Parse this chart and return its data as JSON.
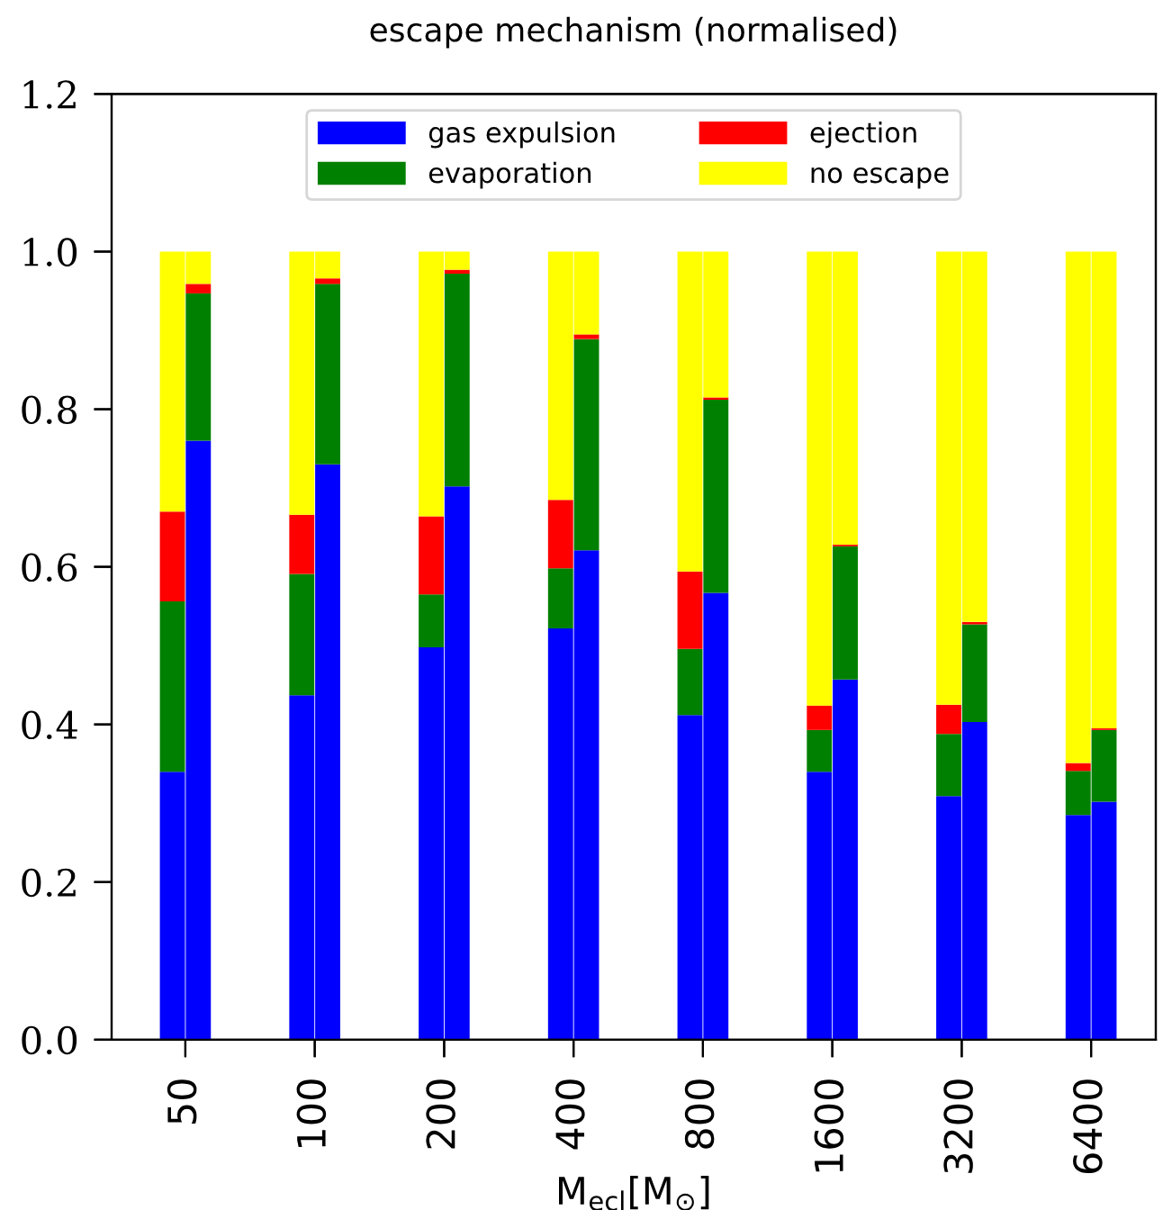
{
  "chart_data": [
    {
      "type": "bar",
      "title": "escape mechanism (normalised)",
      "xlabel": "M$_{ecl}$[M$_{⊙}$]",
      "stacked": true,
      "legend": "top",
      "categories": [
        "50",
        "100",
        "200",
        "400",
        "800",
        "1600",
        "3200",
        "6400"
      ],
      "ylim": [
        0,
        1.2
      ],
      "yticks": [
        {
          "value": 0,
          "label": "0.0"
        },
        0.2,
        0.4,
        0.6,
        0.8,
        {
          "value": 1,
          "label": "1.0"
        },
        1.2
      ],
      "series": [
        {
          "name": "gas expulsion",
          "color": "#0000ff",
          "values": [
            0.34,
            0.437,
            0.498,
            0.522,
            0.412,
            0.34,
            0.309,
            0.285
          ]
        },
        {
          "name": "evaporation",
          "color": "#008000",
          "values": [
            0.216,
            0.154,
            0.067,
            0.076,
            0.084,
            0.053,
            0.079,
            0.056
          ]
        },
        {
          "name": "ejection",
          "color": "#ff0000",
          "values": [
            0.114,
            0.075,
            0.099,
            0.087,
            0.098,
            0.031,
            0.037,
            0.01
          ]
        },
        {
          "name": "no escape",
          "color": "#ffff00",
          "values": [
            0.33,
            0.334,
            0.336,
            0.315,
            0.406,
            0.576,
            0.575,
            0.649
          ]
        }
      ]
    },
    {
      "type": "bar",
      "stacked": true,
      "tick_labels": false,
      "categories": [
        "50",
        "100",
        "200",
        "400",
        "800",
        "1600",
        "3200",
        "6400"
      ],
      "ylim": [
        0,
        1.2
      ],
      "series": [
        {
          "color": "#0000ff",
          "values": [
            0.76,
            0.73,
            0.702,
            0.621,
            0.567,
            0.457,
            0.403,
            0.302
          ]
        },
        {
          "color": "#008000",
          "values": [
            0.187,
            0.229,
            0.27,
            0.268,
            0.245,
            0.169,
            0.124,
            0.091
          ]
        },
        {
          "color": "#ff0000",
          "values": [
            0.012,
            0.007,
            0.005,
            0.006,
            0.003,
            0.002,
            0.003,
            0.002
          ]
        },
        {
          "color": "#ffff00",
          "values": [
            0.041,
            0.034,
            0.023,
            0.105,
            0.185,
            0.372,
            0.47,
            0.605
          ]
        }
      ]
    }
  ]
}
